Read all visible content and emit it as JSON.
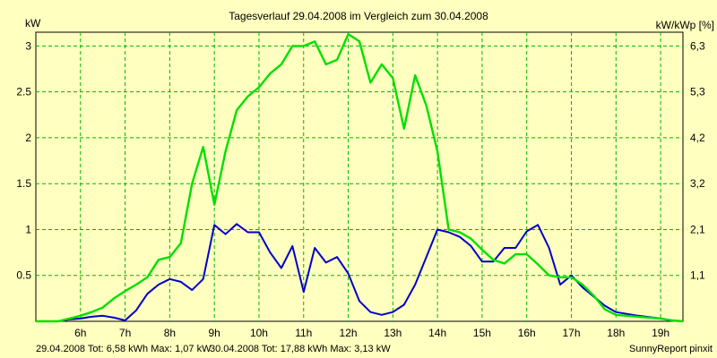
{
  "chart_data": {
    "type": "line",
    "title": "Tagesverlauf 29.04.2008 im Vergleich zum 30.04.2008",
    "ylabel_left": "kW",
    "ylabel_right": "kW/kWp [%]",
    "grid": true,
    "ylim": [
      0,
      3.15
    ],
    "xlim": [
      5.0,
      19.5
    ],
    "x_ticks": [
      "6h",
      "7h",
      "8h",
      "9h",
      "10h",
      "11h",
      "12h",
      "13h",
      "14h",
      "15h",
      "16h",
      "17h",
      "18h",
      "19h"
    ],
    "x_tick_values": [
      6,
      7,
      8,
      9,
      10,
      11,
      12,
      13,
      14,
      15,
      16,
      17,
      18,
      19
    ],
    "y_ticks_left": [
      "0.5",
      "1",
      "1.5",
      "2",
      "2.5",
      "3"
    ],
    "y_tick_values_left": [
      0.5,
      1,
      1.5,
      2,
      2.5,
      3
    ],
    "y_ticks_right": [
      "1,1",
      "2,1",
      "3,2",
      "4,2",
      "5,3",
      "6,3"
    ],
    "series": [
      {
        "name": "29.04.2008",
        "color": "#0000c8",
        "summary_label": "29.04.2008 Tot: 6,58 kWh Max: 1,07 kW",
        "points": [
          [
            5.0,
            0.0
          ],
          [
            5.5,
            0.0
          ],
          [
            5.75,
            0.02
          ],
          [
            6.0,
            0.03
          ],
          [
            6.25,
            0.05
          ],
          [
            6.5,
            0.06
          ],
          [
            6.75,
            0.04
          ],
          [
            7.0,
            0.01
          ],
          [
            7.25,
            0.12
          ],
          [
            7.5,
            0.3
          ],
          [
            7.75,
            0.4
          ],
          [
            8.0,
            0.46
          ],
          [
            8.25,
            0.43
          ],
          [
            8.5,
            0.34
          ],
          [
            8.75,
            0.46
          ],
          [
            9.0,
            1.05
          ],
          [
            9.25,
            0.95
          ],
          [
            9.5,
            1.06
          ],
          [
            9.75,
            0.97
          ],
          [
            10.0,
            0.97
          ],
          [
            10.25,
            0.75
          ],
          [
            10.5,
            0.58
          ],
          [
            10.75,
            0.82
          ],
          [
            11.0,
            0.32
          ],
          [
            11.25,
            0.8
          ],
          [
            11.5,
            0.64
          ],
          [
            11.75,
            0.7
          ],
          [
            12.0,
            0.52
          ],
          [
            12.25,
            0.22
          ],
          [
            12.5,
            0.1
          ],
          [
            12.75,
            0.07
          ],
          [
            13.0,
            0.1
          ],
          [
            13.25,
            0.18
          ],
          [
            13.5,
            0.4
          ],
          [
            13.75,
            0.7
          ],
          [
            14.0,
            1.0
          ],
          [
            14.25,
            0.97
          ],
          [
            14.5,
            0.92
          ],
          [
            14.75,
            0.82
          ],
          [
            15.0,
            0.65
          ],
          [
            15.25,
            0.65
          ],
          [
            15.5,
            0.8
          ],
          [
            15.75,
            0.8
          ],
          [
            16.0,
            0.98
          ],
          [
            16.25,
            1.05
          ],
          [
            16.5,
            0.8
          ],
          [
            16.75,
            0.4
          ],
          [
            17.0,
            0.5
          ],
          [
            17.25,
            0.37
          ],
          [
            17.5,
            0.27
          ],
          [
            17.75,
            0.17
          ],
          [
            18.0,
            0.1
          ],
          [
            18.5,
            0.06
          ],
          [
            19.0,
            0.03
          ],
          [
            19.25,
            0.01
          ],
          [
            19.5,
            0.0
          ]
        ]
      },
      {
        "name": "30.04.2008",
        "color": "#00e000",
        "summary_label": "30.04.2008 Tot: 17,88 kWh Max: 3,13 kW",
        "points": [
          [
            5.0,
            0.0
          ],
          [
            5.5,
            0.0
          ],
          [
            5.75,
            0.03
          ],
          [
            6.0,
            0.06
          ],
          [
            6.25,
            0.1
          ],
          [
            6.5,
            0.15
          ],
          [
            6.75,
            0.25
          ],
          [
            7.0,
            0.33
          ],
          [
            7.25,
            0.4
          ],
          [
            7.5,
            0.48
          ],
          [
            7.75,
            0.67
          ],
          [
            8.0,
            0.7
          ],
          [
            8.25,
            0.85
          ],
          [
            8.5,
            1.5
          ],
          [
            8.75,
            1.9
          ],
          [
            9.0,
            1.27
          ],
          [
            9.25,
            1.85
          ],
          [
            9.5,
            2.3
          ],
          [
            9.75,
            2.45
          ],
          [
            10.0,
            2.55
          ],
          [
            10.25,
            2.7
          ],
          [
            10.5,
            2.8
          ],
          [
            10.75,
            3.0
          ],
          [
            11.0,
            3.0
          ],
          [
            11.25,
            3.05
          ],
          [
            11.5,
            2.8
          ],
          [
            11.75,
            2.85
          ],
          [
            12.0,
            3.13
          ],
          [
            12.25,
            3.05
          ],
          [
            12.5,
            2.6
          ],
          [
            12.75,
            2.8
          ],
          [
            13.0,
            2.65
          ],
          [
            13.25,
            2.1
          ],
          [
            13.5,
            2.68
          ],
          [
            13.75,
            2.35
          ],
          [
            14.0,
            1.85
          ],
          [
            14.25,
            1.0
          ],
          [
            14.5,
            0.97
          ],
          [
            14.75,
            0.9
          ],
          [
            15.0,
            0.78
          ],
          [
            15.25,
            0.67
          ],
          [
            15.5,
            0.63
          ],
          [
            15.75,
            0.73
          ],
          [
            16.0,
            0.73
          ],
          [
            16.25,
            0.62
          ],
          [
            16.5,
            0.5
          ],
          [
            16.75,
            0.48
          ],
          [
            17.0,
            0.48
          ],
          [
            17.25,
            0.4
          ],
          [
            17.5,
            0.28
          ],
          [
            17.75,
            0.13
          ],
          [
            18.0,
            0.07
          ],
          [
            18.5,
            0.05
          ],
          [
            19.0,
            0.03
          ],
          [
            19.25,
            0.01
          ],
          [
            19.5,
            0.0
          ]
        ]
      }
    ],
    "footer_right": "SunnyReport pinxit"
  }
}
